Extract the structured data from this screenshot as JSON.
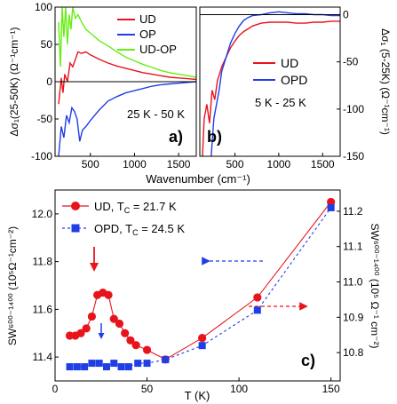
{
  "colors": {
    "red": "#e8141c",
    "blue": "#1f3ee6",
    "green": "#66ee11",
    "black": "#000000"
  },
  "chart_data": [
    {
      "id": "a",
      "type": "line",
      "panel_label": "a)",
      "annotation": "25 K - 50 K",
      "ylabel": "Δσ₁(25-50K) (Ω⁻¹cm⁻¹)",
      "xlim": [
        100,
        1700
      ],
      "ylim": [
        -100,
        100
      ],
      "xticks": [
        500,
        1000,
        1500
      ],
      "yticks": [
        -100,
        -50,
        0,
        50,
        100
      ],
      "ytick_labels": [
        "-100",
        "-50",
        "0",
        "50",
        "100"
      ],
      "zero_line": true,
      "legend": "top-right",
      "series": [
        {
          "name": "UD",
          "color": "#e8141c",
          "x": [
            140,
            170,
            190,
            210,
            240,
            270,
            300,
            330,
            360,
            400,
            450,
            500,
            600,
            700,
            800,
            900,
            1000,
            1100,
            1200,
            1300,
            1400,
            1500,
            1600,
            1700
          ],
          "y": [
            -30,
            5,
            -15,
            10,
            0,
            25,
            20,
            30,
            40,
            38,
            40,
            36,
            30,
            25,
            21,
            18,
            15,
            12,
            10,
            8,
            6,
            5,
            4,
            3
          ]
        },
        {
          "name": "OP",
          "color": "#1f3ee6",
          "x": [
            140,
            170,
            200,
            230,
            260,
            290,
            320,
            350,
            380,
            410,
            450,
            500,
            550,
            600,
            650,
            700,
            800,
            900,
            1000,
            1100,
            1200,
            1300,
            1400,
            1500,
            1600,
            1700
          ],
          "y": [
            -100,
            -60,
            -75,
            -45,
            -55,
            -35,
            -40,
            -50,
            -80,
            -65,
            -60,
            -52,
            -45,
            -38,
            -32,
            -26,
            -20,
            -15,
            -12,
            -9,
            -6,
            -4,
            -3,
            -2,
            -1,
            0
          ]
        },
        {
          "name": "UD-OP",
          "color": "#66ee11",
          "x": [
            140,
            160,
            180,
            200,
            220,
            240,
            260,
            280,
            300,
            330,
            360,
            400,
            450,
            500,
            600,
            700,
            800,
            900,
            1000,
            1100,
            1200,
            1300,
            1400,
            1500,
            1600,
            1700
          ],
          "y": [
            80,
            20,
            100,
            60,
            100,
            50,
            90,
            70,
            100,
            85,
            90,
            80,
            70,
            65,
            55,
            48,
            40,
            33,
            28,
            23,
            19,
            15,
            12,
            10,
            8,
            6
          ]
        }
      ]
    },
    {
      "id": "b",
      "type": "line",
      "panel_label": "b)",
      "annotation": "5 K - 25 K",
      "xlabel": "Wavenumber (cm⁻¹)",
      "ylabel": "Δσ₁ (5-25K) (Ω⁻¹cm⁻¹)",
      "xlim": [
        100,
        1700
      ],
      "ylim": [
        -150,
        8
      ],
      "xticks": [
        500,
        1000,
        1500
      ],
      "yticks": [
        -150,
        -100,
        -50,
        0
      ],
      "ytick_labels": [
        "-150",
        "-100",
        "-50",
        "0"
      ],
      "zero_line": true,
      "legend": "bottom-right",
      "series": [
        {
          "name": "UD",
          "color": "#e8141c",
          "x": [
            130,
            150,
            180,
            210,
            240,
            270,
            300,
            350,
            400,
            450,
            500,
            550,
            600,
            650,
            700,
            800,
            900,
            1000,
            1100,
            1200,
            1300,
            1400,
            1500,
            1600,
            1700
          ],
          "y": [
            -150,
            -110,
            -95,
            -115,
            -80,
            -90,
            -70,
            -55,
            -45,
            -35,
            -28,
            -22,
            -18,
            -15,
            -12,
            -9,
            -8,
            -8,
            -8,
            -9,
            -9,
            -8,
            -8,
            -7,
            -7
          ]
        },
        {
          "name": "OPD",
          "color": "#1f3ee6",
          "x": [
            230,
            260,
            290,
            320,
            350,
            400,
            450,
            500,
            550,
            600,
            650,
            700,
            800,
            900,
            1000,
            1100,
            1200,
            1300,
            1400,
            1500,
            1600,
            1700
          ],
          "y": [
            -150,
            -110,
            -95,
            -80,
            -60,
            -45,
            -30,
            -20,
            -12,
            -6,
            -3,
            -1,
            0,
            2,
            3,
            2,
            1,
            1,
            0,
            0,
            -1,
            -1
          ]
        }
      ]
    },
    {
      "id": "c",
      "type": "scatter",
      "panel_label": "c)",
      "xlabel": "T (K)",
      "ylabel": "SW⁶⁰⁰⁻¹⁴⁰⁰ (10⁵Ω⁻¹cm⁻²)",
      "ylabel_right": "SW⁶⁰⁰⁻¹⁴⁰⁰ (10⁵ Ω⁻¹ cm⁻²)",
      "xlim": [
        0,
        155
      ],
      "ylim_left": [
        11.3,
        12.1
      ],
      "ylim_right": [
        10.72,
        11.26
      ],
      "xticks": [
        0,
        50,
        100,
        150
      ],
      "yticks_left": [
        11.4,
        11.6,
        11.8,
        12.0
      ],
      "ytick_labels_left": [
        "11.4",
        "11.6",
        "11.8",
        "12.0"
      ],
      "yticks_right": [
        10.8,
        10.9,
        11.0,
        11.1,
        11.2
      ],
      "ytick_labels_right": [
        "10.8",
        "10.9",
        "11.0",
        "11.1",
        "11.2"
      ],
      "legend": "top-left",
      "series": [
        {
          "name": "UD, Tc = 21.7 K",
          "legend_main": "UD, T",
          "legend_sub": "C",
          "legend_rest": " = 21.7 K",
          "color": "#e8141c",
          "marker": "circle",
          "line": "solid",
          "axis": "left",
          "x": [
            8,
            11,
            14,
            17,
            20,
            23,
            26,
            29,
            32,
            35,
            38,
            41,
            44,
            50,
            60,
            80,
            110,
            150
          ],
          "y": [
            11.49,
            11.49,
            11.5,
            11.52,
            11.57,
            11.66,
            11.67,
            11.66,
            11.56,
            11.54,
            11.5,
            11.47,
            11.45,
            11.43,
            11.39,
            11.48,
            11.65,
            12.05
          ]
        },
        {
          "name": "OPD, Tc = 24.5 K",
          "legend_main": "OPD, T",
          "legend_sub": "C",
          "legend_rest": " = 24.5 K",
          "color": "#1f3ee6",
          "marker": "square",
          "line": "dashed",
          "axis": "right",
          "x": [
            8,
            12,
            16,
            20,
            24,
            28,
            32,
            36,
            40,
            45,
            50,
            60,
            80,
            110,
            150
          ],
          "y": [
            10.76,
            10.76,
            10.76,
            10.77,
            10.77,
            10.76,
            10.77,
            10.76,
            10.76,
            10.77,
            10.77,
            10.78,
            10.82,
            10.92,
            11.21
          ]
        }
      ]
    }
  ]
}
